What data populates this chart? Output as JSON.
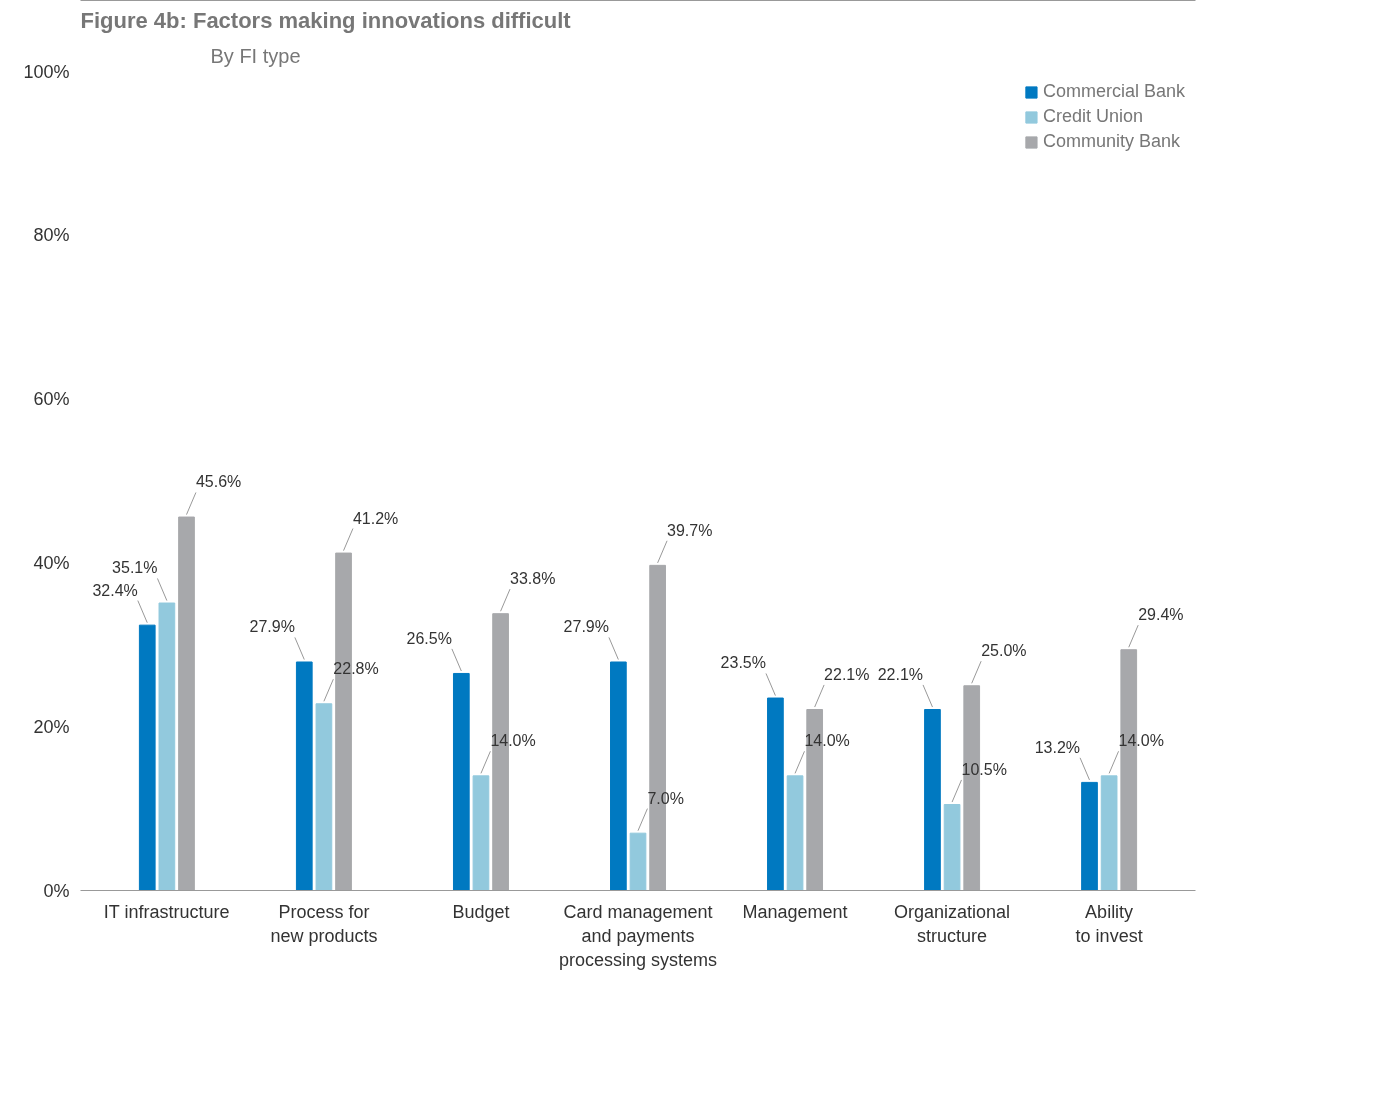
{
  "chart_data": {
    "type": "bar",
    "title": "Figure 4b: Factors making innovations difficult",
    "subtitle": "By FI type",
    "categories": [
      "IT infrastructure",
      "Process for\nnew products",
      "Budget",
      "Card management\nand payments\nprocessing systems",
      "Management",
      "Organizational\nstructure",
      "Ability\nto invest"
    ],
    "series": [
      {
        "name": "Commercial Bank",
        "color": "#0079c1",
        "values": [
          32.4,
          27.9,
          26.5,
          27.9,
          23.5,
          22.1,
          13.2
        ],
        "value_labels": [
          "32.4%",
          "27.9%",
          "26.5%",
          "27.9%",
          "23.5%",
          "22.1%",
          "13.2%"
        ]
      },
      {
        "name": "Credit Union",
        "color": "#92c9dd",
        "values": [
          35.1,
          22.8,
          14.0,
          7.0,
          14.0,
          10.5,
          14.0
        ],
        "value_labels": [
          "35.1%",
          "22.8%",
          "14.0%",
          "7.0%",
          "14.0%",
          "10.5%",
          "14.0%"
        ]
      },
      {
        "name": "Community Bank",
        "color": "#a7a8ab",
        "values": [
          45.6,
          41.2,
          33.8,
          39.7,
          22.1,
          25.0,
          29.4
        ],
        "value_labels": [
          "45.6%",
          "41.2%",
          "33.8%",
          "39.7%",
          "22.1%",
          "25.0%",
          "29.4%"
        ]
      }
    ],
    "ylim": [
      0,
      100
    ],
    "yticks": [
      {
        "value": 0,
        "label": "0%"
      },
      {
        "value": 20,
        "label": "20%"
      },
      {
        "value": 40,
        "label": "40%"
      },
      {
        "value": 60,
        "label": "60%"
      },
      {
        "value": 80,
        "label": "80%"
      },
      {
        "value": 100,
        "label": "100%"
      }
    ],
    "grid": false,
    "legend": "top right"
  }
}
